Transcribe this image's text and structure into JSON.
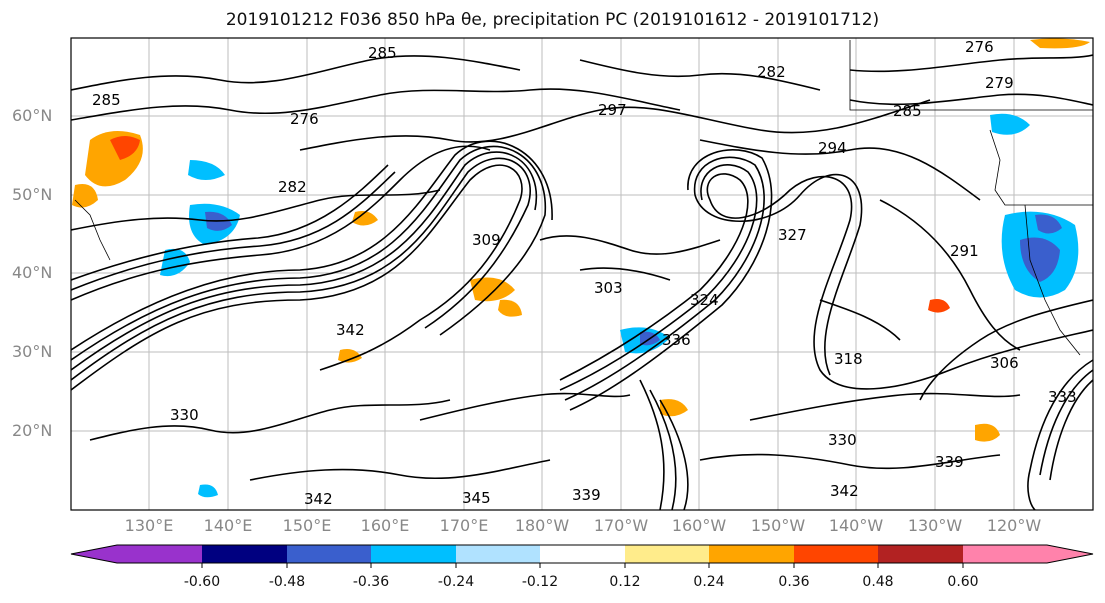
{
  "title": {
    "text": "2019101212 F036 850 hPa θe, precipitation PC (2019101612 - 2019101712)"
  },
  "map": {
    "lat_labels": [
      "60°N",
      "50°N",
      "40°N",
      "30°N",
      "20°N"
    ],
    "lon_labels": [
      "130°E",
      "140°E",
      "150°E",
      "160°E",
      "170°E",
      "180°W",
      "170°W",
      "160°W",
      "150°W",
      "140°W",
      "130°W",
      "120°W"
    ],
    "contour_labels": [
      {
        "text": "285"
      },
      {
        "text": "276"
      },
      {
        "text": "285"
      },
      {
        "text": "282"
      },
      {
        "text": "297"
      },
      {
        "text": "276"
      },
      {
        "text": "285"
      },
      {
        "text": "279"
      },
      {
        "text": "282"
      },
      {
        "text": "294"
      },
      {
        "text": "327"
      },
      {
        "text": "303"
      },
      {
        "text": "309"
      },
      {
        "text": "324"
      },
      {
        "text": "336"
      },
      {
        "text": "318"
      },
      {
        "text": "306"
      },
      {
        "text": "330"
      },
      {
        "text": "339"
      },
      {
        "text": "342"
      },
      {
        "text": "345"
      },
      {
        "text": "339"
      },
      {
        "text": "342"
      },
      {
        "text": "342"
      },
      {
        "text": "330"
      },
      {
        "text": "291"
      },
      {
        "text": "333"
      }
    ]
  },
  "colorbar": {
    "colors": [
      "#9932CC",
      "#000080",
      "#3A5FCD",
      "#00BFFF",
      "#B0E2FF",
      "#FFFFFF",
      "#FFEC8B",
      "#FFA500",
      "#FF4500",
      "#B22222",
      "#FF82AB"
    ],
    "tick_labels": [
      "-0.60",
      "-0.48",
      "-0.36",
      "-0.24",
      "-0.12",
      "0.12",
      "0.24",
      "0.36",
      "0.48",
      "0.60"
    ]
  }
}
